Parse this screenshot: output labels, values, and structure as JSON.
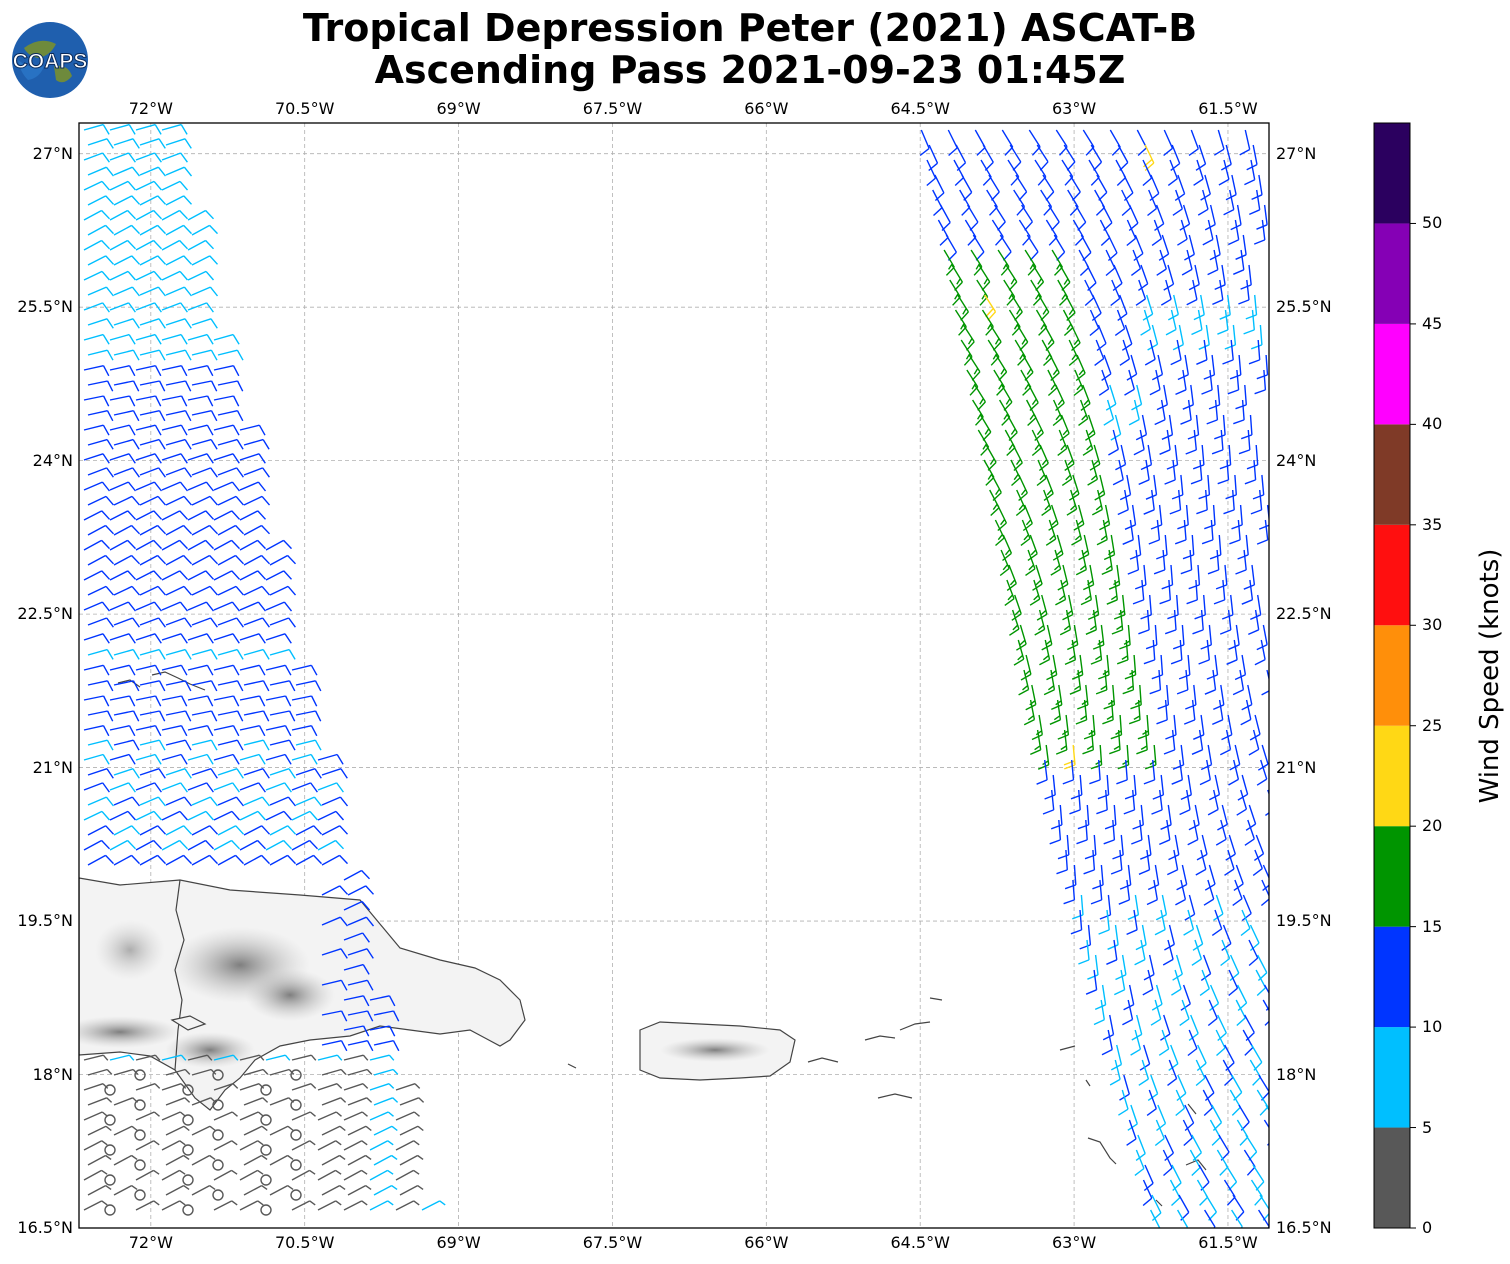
{
  "title": {
    "line1": "Tropical Depression Peter (2021) ASCAT-B",
    "line2": "Ascending Pass 2021-09-23 01:45Z"
  },
  "logo": {
    "text": "COAPS",
    "icon": "globe-icon"
  },
  "map": {
    "lon_range": [
      -72.7,
      -61.1
    ],
    "lat_range": [
      16.5,
      27.3
    ],
    "lon_ticks": [
      {
        "value": -72,
        "label": "72°W"
      },
      {
        "value": -70.5,
        "label": "70.5°W"
      },
      {
        "value": -69,
        "label": "69°W"
      },
      {
        "value": -67.5,
        "label": "67.5°W"
      },
      {
        "value": -66,
        "label": "66°W"
      },
      {
        "value": -64.5,
        "label": "64.5°W"
      },
      {
        "value": -63,
        "label": "63°W"
      },
      {
        "value": -61.5,
        "label": "61.5°W"
      }
    ],
    "lat_ticks": [
      {
        "value": 27,
        "label": "27°N"
      },
      {
        "value": 25.5,
        "label": "25.5°N"
      },
      {
        "value": 24,
        "label": "24°N"
      },
      {
        "value": 22.5,
        "label": "22.5°N"
      },
      {
        "value": 21,
        "label": "21°N"
      },
      {
        "value": 19.5,
        "label": "19.5°N"
      },
      {
        "value": 18,
        "label": "18°N"
      },
      {
        "value": 16.5,
        "label": "16.5°N"
      }
    ],
    "gridlines": true
  },
  "colorbar": {
    "label": "Wind Speed (knots)",
    "ticks": [
      "0",
      "5",
      "10",
      "15",
      "20",
      "25",
      "30",
      "35",
      "40",
      "45",
      "50"
    ],
    "bins": [
      {
        "min": 0,
        "max": 5,
        "color": "#585858"
      },
      {
        "min": 5,
        "max": 10,
        "color": "#00bfff"
      },
      {
        "min": 10,
        "max": 15,
        "color": "#0035ff"
      },
      {
        "min": 15,
        "max": 20,
        "color": "#009500"
      },
      {
        "min": 20,
        "max": 25,
        "color": "#ffd815"
      },
      {
        "min": 25,
        "max": 30,
        "color": "#ff8f0a"
      },
      {
        "min": 30,
        "max": 35,
        "color": "#ff0f0f"
      },
      {
        "min": 35,
        "max": 40,
        "color": "#7f3a27"
      },
      {
        "min": 40,
        "max": 45,
        "color": "#ff00ff"
      },
      {
        "min": 45,
        "max": 50,
        "color": "#8500b5"
      },
      {
        "min": 50,
        "max": 55,
        "color": "#2b005f"
      }
    ]
  }
}
